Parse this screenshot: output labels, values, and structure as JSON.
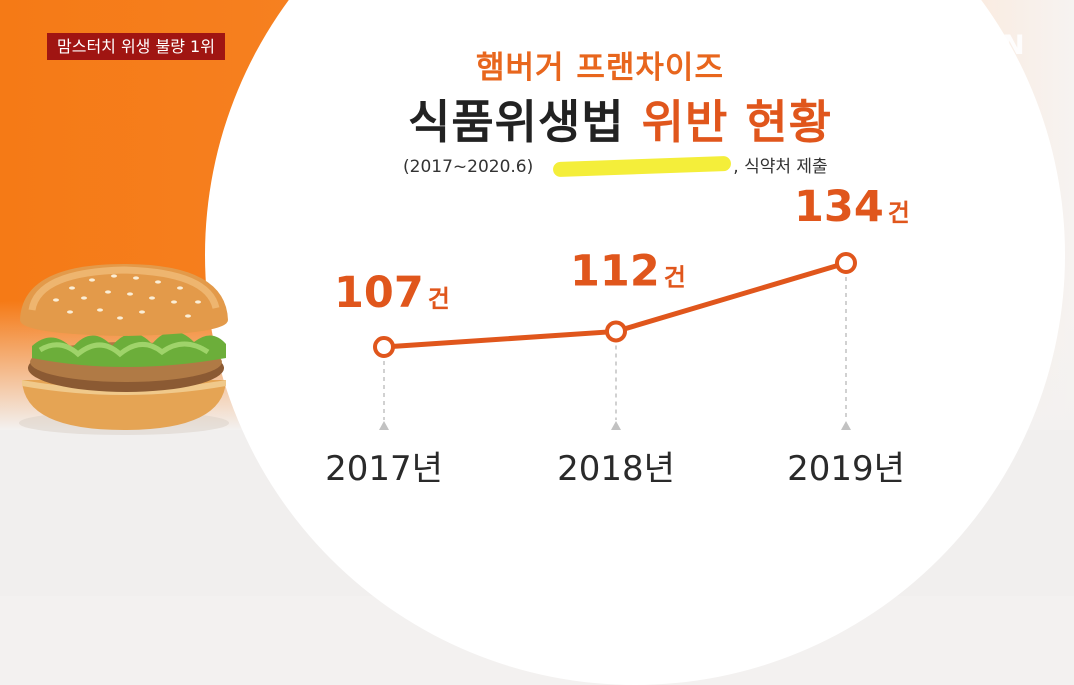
{
  "news_tag": "맘스터치 위생 불량 1위",
  "channel_logo": "YTN",
  "chart_data": {
    "type": "line",
    "subtitle": "햄버거 프랜차이즈",
    "title_part1": "식품위생법",
    "title_part2": "위반 현황",
    "source_period": "(2017~2020.6)",
    "source_tail": ", 식약처 제출",
    "categories": [
      "2017년",
      "2018년",
      "2019년"
    ],
    "values": [
      107,
      112,
      134
    ],
    "unit": "건",
    "colors": {
      "line": "#e0561c",
      "value_text": "#e0561c",
      "accent_orange": "#f57a16",
      "news_tag_bg": "#a01512"
    }
  }
}
